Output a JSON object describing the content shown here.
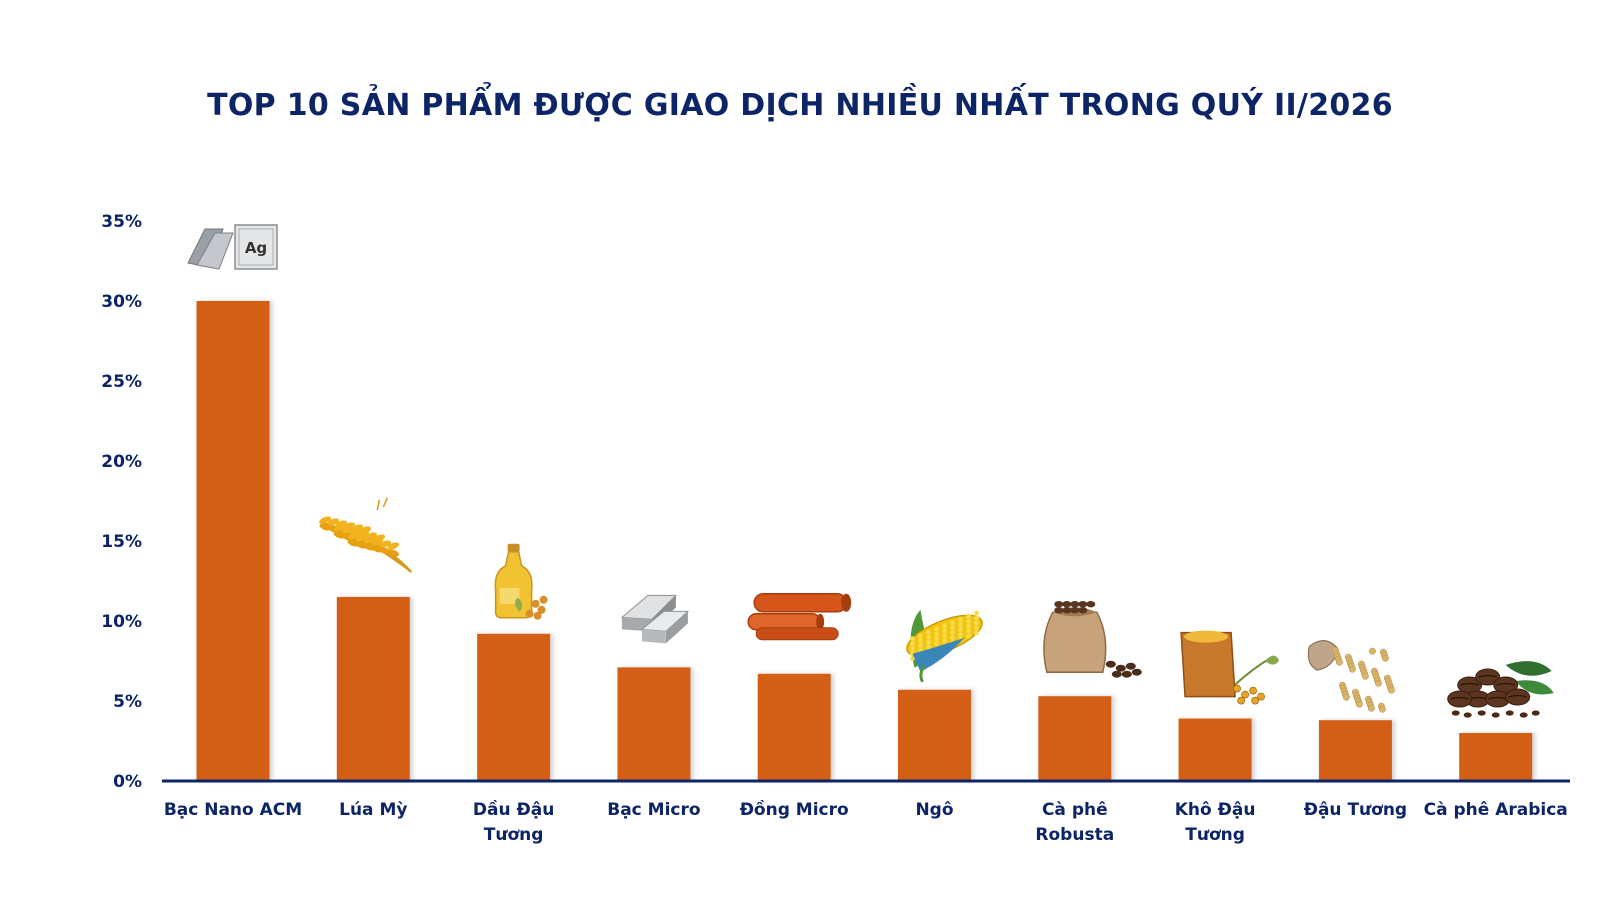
{
  "chart_data": {
    "type": "bar",
    "title": "TOP 10 SẢN PHẨM ĐƯỢC GIAO DỊCH NHIỀU NHẤT TRONG QUÝ II/2026",
    "categories": [
      [
        "Bạc Nano ACM"
      ],
      [
        "Lúa Mỳ"
      ],
      [
        "Dầu Đậu",
        "Tương"
      ],
      [
        "Bạc Micro"
      ],
      [
        "Đồng Micro"
      ],
      [
        "Ngô"
      ],
      [
        "Cà phê",
        "Robusta"
      ],
      [
        "Khô Đậu",
        "Tương"
      ],
      [
        "Đậu Tương"
      ],
      [
        "Cà phê Arabica"
      ]
    ],
    "values": [
      30.0,
      11.5,
      9.2,
      7.1,
      6.7,
      5.7,
      5.3,
      3.9,
      3.8,
      3.0
    ],
    "icons": [
      "silver-bars-icon",
      "wheat-icon",
      "soybean-oil-icon",
      "silver-bar-icon",
      "copper-pipes-icon",
      "corn-icon",
      "coffee-sack-icon",
      "soybean-meal-sack-icon",
      "soybean-sack-icon",
      "coffee-beans-icon"
    ],
    "yticks": [
      "0%",
      "5%",
      "10%",
      "15%",
      "20%",
      "25%",
      "30%",
      "35%"
    ],
    "ylim": [
      0,
      35
    ],
    "grid": false,
    "xlabel": "",
    "ylabel": "",
    "colors": {
      "bar": "#d35f12",
      "axis": "#0d2566",
      "text": "#0d2566"
    }
  }
}
